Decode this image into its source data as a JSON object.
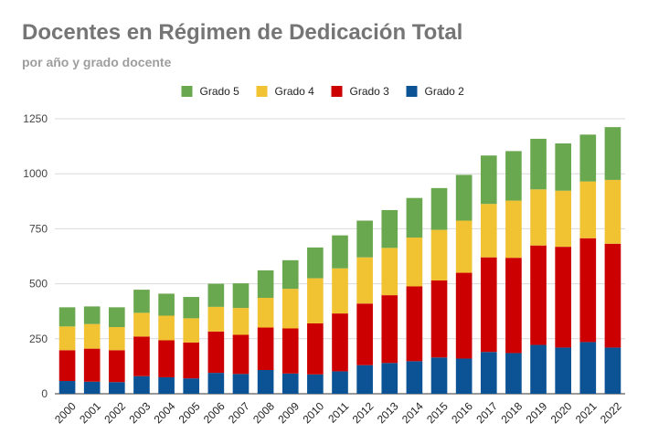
{
  "chart_data": {
    "type": "bar",
    "stacked": true,
    "title": "Docentes en Régimen de Dedicación Total",
    "subtitle": "por año y grado docente",
    "xlabel": "",
    "ylabel": "",
    "ylim": [
      0,
      1250
    ],
    "yticks": [
      0,
      250,
      500,
      750,
      1000,
      1250
    ],
    "grid": true,
    "legend_position": "top",
    "categories": [
      "2000",
      "2001",
      "2002",
      "2003",
      "2004",
      "2005",
      "2006",
      "2007",
      "2008",
      "2009",
      "2010",
      "2011",
      "2012",
      "2013",
      "2014",
      "2015",
      "2016",
      "2017",
      "2018",
      "2019",
      "2020",
      "2021",
      "2022"
    ],
    "series": [
      {
        "name": "Grado 2",
        "color": "#0b5394",
        "values": [
          58,
          55,
          53,
          80,
          75,
          70,
          95,
          90,
          108,
          92,
          88,
          102,
          130,
          140,
          148,
          165,
          160,
          190,
          185,
          222,
          210,
          235,
          210
        ]
      },
      {
        "name": "Grado 3",
        "color": "#cc0000",
        "values": [
          140,
          150,
          145,
          180,
          168,
          163,
          188,
          178,
          193,
          205,
          232,
          263,
          280,
          308,
          340,
          350,
          390,
          430,
          433,
          452,
          458,
          472,
          472
        ]
      },
      {
        "name": "Grado 4",
        "color": "#f1c232",
        "values": [
          108,
          112,
          105,
          108,
          112,
          110,
          112,
          122,
          135,
          180,
          205,
          205,
          210,
          215,
          222,
          230,
          237,
          243,
          260,
          255,
          255,
          258,
          290
        ]
      },
      {
        "name": "Grado 5",
        "color": "#6aa84f",
        "values": [
          87,
          80,
          90,
          105,
          100,
          97,
          105,
          112,
          125,
          130,
          140,
          150,
          167,
          172,
          180,
          190,
          208,
          220,
          225,
          230,
          215,
          213,
          240
        ]
      }
    ],
    "legend_order": [
      "Grado 5",
      "Grado 4",
      "Grado 3",
      "Grado 2"
    ]
  }
}
